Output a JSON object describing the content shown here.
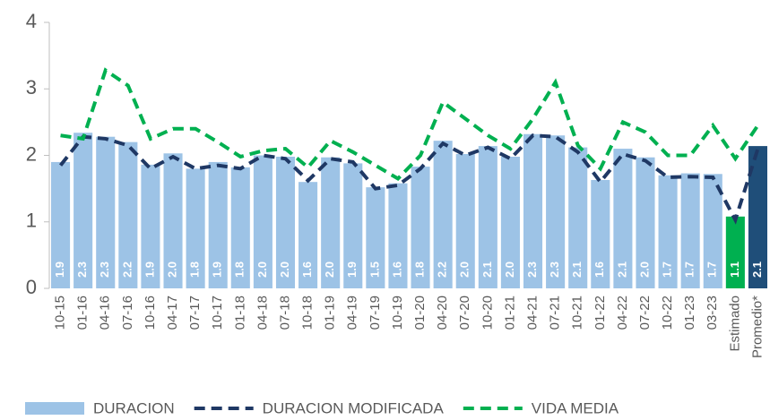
{
  "chart_data": {
    "type": "bar",
    "categories": [
      "10-15",
      "01-16",
      "04-16",
      "07-16",
      "10-16",
      "04-17",
      "07-17",
      "10-17",
      "01-18",
      "04-18",
      "07-18",
      "10-18",
      "01-19",
      "04-19",
      "07-19",
      "10-19",
      "01-20",
      "04-20",
      "07-20",
      "10-20",
      "01-21",
      "04-21",
      "07-21",
      "10-21",
      "01-22",
      "04-22",
      "07-22",
      "10-22",
      "01-23",
      "03-23",
      "Estimado",
      "Promedio*"
    ],
    "series": [
      {
        "name": "DURACION",
        "type": "bar",
        "color": "#9dc3e6",
        "colors": [
          "#9dc3e6",
          "#9dc3e6",
          "#9dc3e6",
          "#9dc3e6",
          "#9dc3e6",
          "#9dc3e6",
          "#9dc3e6",
          "#9dc3e6",
          "#9dc3e6",
          "#9dc3e6",
          "#9dc3e6",
          "#9dc3e6",
          "#9dc3e6",
          "#9dc3e6",
          "#9dc3e6",
          "#9dc3e6",
          "#9dc3e6",
          "#9dc3e6",
          "#9dc3e6",
          "#9dc3e6",
          "#9dc3e6",
          "#9dc3e6",
          "#9dc3e6",
          "#9dc3e6",
          "#9dc3e6",
          "#9dc3e6",
          "#9dc3e6",
          "#9dc3e6",
          "#9dc3e6",
          "#9dc3e6",
          "#00b050",
          "#1f4e79"
        ],
        "values": [
          1.9,
          2.34,
          2.28,
          2.2,
          1.86,
          2.03,
          1.8,
          1.9,
          1.82,
          2.0,
          1.98,
          1.6,
          1.97,
          1.88,
          1.52,
          1.58,
          1.83,
          2.22,
          2.02,
          2.14,
          1.98,
          2.32,
          2.3,
          2.12,
          1.63,
          2.1,
          1.97,
          1.7,
          1.73,
          1.72,
          1.08,
          2.14
        ],
        "value_labels": [
          "1.9",
          "2.3",
          "2.3",
          "2.2",
          "1.9",
          "2.0",
          "1.8",
          "1.9",
          "1.8",
          "2.0",
          "2.0",
          "1.6",
          "2.0",
          "1.9",
          "1.5",
          "1.6",
          "1.8",
          "2.2",
          "2.0",
          "2.1",
          "2.0",
          "2.3",
          "2.3",
          "2.1",
          "1.6",
          "2.1",
          "2.0",
          "1.7",
          "1.7",
          "1.7",
          "1.1",
          "2.1"
        ]
      },
      {
        "name": "DURACION MODIFICADA",
        "type": "line",
        "color": "#1f3864",
        "values": [
          1.85,
          2.28,
          2.25,
          2.15,
          1.8,
          1.98,
          1.8,
          1.85,
          1.8,
          2.0,
          1.95,
          1.62,
          1.95,
          1.9,
          1.5,
          1.55,
          1.8,
          2.18,
          2.0,
          2.12,
          1.95,
          2.3,
          2.28,
          2.05,
          1.6,
          2.02,
          1.92,
          1.67,
          1.68,
          1.67,
          1.03,
          2.1
        ]
      },
      {
        "name": "VIDA MEDIA",
        "type": "line",
        "color": "#00b050",
        "values": [
          2.3,
          2.25,
          3.28,
          3.05,
          2.25,
          2.4,
          2.4,
          2.2,
          1.98,
          2.07,
          2.1,
          1.82,
          2.22,
          2.05,
          1.85,
          1.65,
          2.0,
          2.8,
          2.55,
          2.3,
          2.1,
          2.55,
          3.1,
          2.15,
          1.8,
          2.5,
          2.35,
          2.0,
          2.0,
          2.45,
          1.95,
          2.45
        ]
      }
    ],
    "ylim": [
      0,
      4
    ],
    "yticks": [
      0,
      1,
      2,
      3,
      4
    ]
  }
}
